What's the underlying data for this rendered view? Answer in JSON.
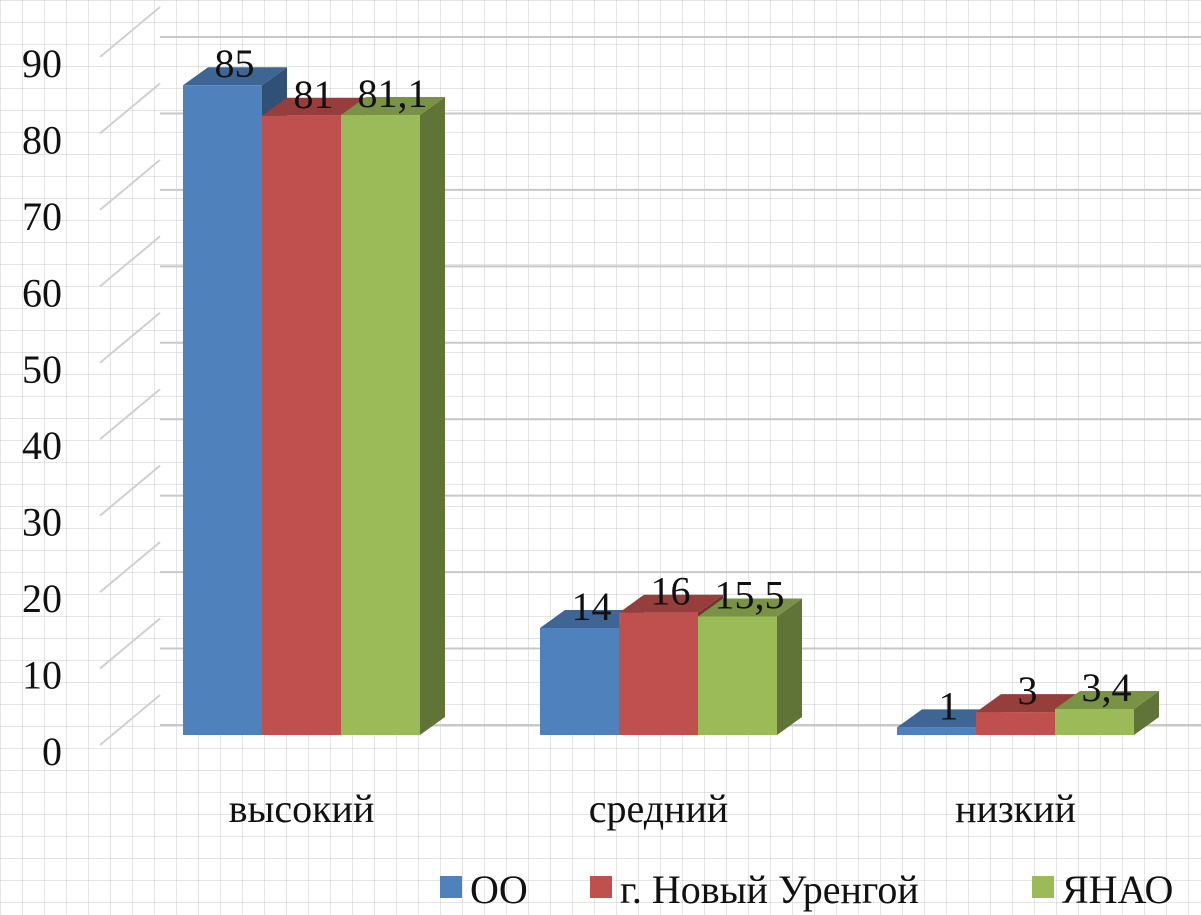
{
  "chart_data": {
    "type": "bar3d",
    "categories": [
      "высокий",
      "средний",
      "низкий"
    ],
    "series": [
      {
        "name": "ОО",
        "color": "#4f81bd",
        "values": [
          85,
          14,
          1
        ],
        "value_labels": [
          "85",
          "14",
          "1"
        ]
      },
      {
        "name": "г. Новый Уренгой",
        "color": "#c0504d",
        "values": [
          81,
          16,
          3
        ],
        "value_labels": [
          "81",
          "16",
          "3"
        ]
      },
      {
        "name": "ЯНАО",
        "color": "#9bbb59",
        "values": [
          81.1,
          15.5,
          3.4
        ],
        "value_labels": [
          "81,1",
          "15,5",
          "3,4"
        ]
      }
    ],
    "ylim": [
      0,
      90
    ],
    "yticks": [
      0,
      10,
      20,
      30,
      40,
      50,
      60,
      70,
      80,
      90
    ],
    "grid": true,
    "legend": "bottom-right"
  }
}
